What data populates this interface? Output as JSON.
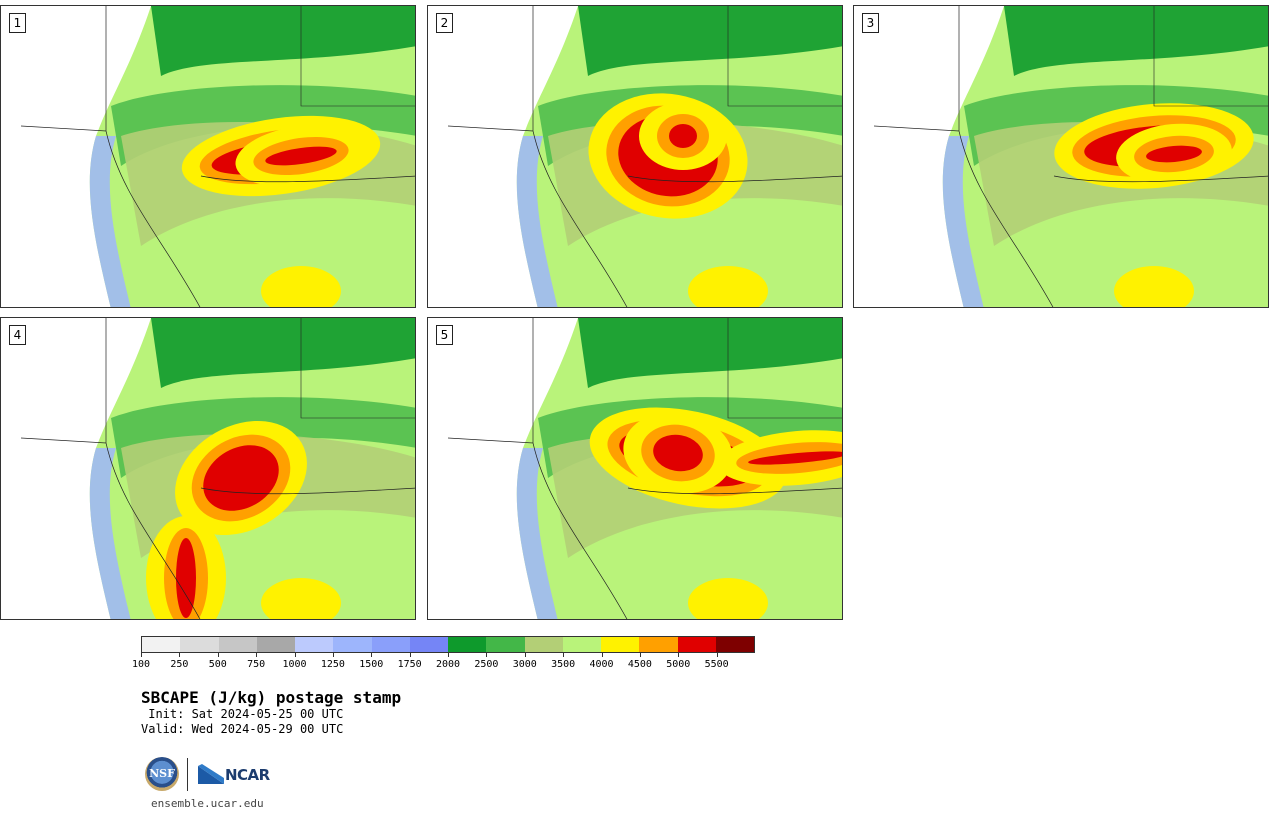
{
  "panels": [
    {
      "number": "1",
      "variant": 1
    },
    {
      "number": "2",
      "variant": 2
    },
    {
      "number": "3",
      "variant": 3
    },
    {
      "number": "4",
      "variant": 4
    },
    {
      "number": "5",
      "variant": 5
    }
  ],
  "colorbar": {
    "colors": [
      "#f2f2f2",
      "#dcdcdc",
      "#c6c6c6",
      "#a8a8a8",
      "#bccafd",
      "#9db5fc",
      "#8a9ffa",
      "#7585f6",
      "#0e9a2c",
      "#43b748",
      "#b3cf76",
      "#b9f37a",
      "#fff200",
      "#ffa000",
      "#e00000",
      "#7e0000"
    ],
    "tick_labels": [
      "100",
      "250",
      "500",
      "750",
      "1000",
      "1250",
      "1500",
      "1750",
      "2000",
      "2500",
      "3000",
      "3500",
      "4000",
      "4500",
      "5000",
      "5500"
    ]
  },
  "title": "SBCAPE (J/kg) postage stamp",
  "init": " Init: Sat 2024-05-25 00 UTC",
  "valid": "Valid: Wed 2024-05-29 00 UTC",
  "logos": {
    "nsf": "NSF",
    "ncar": "NCAR",
    "site": "ensemble.ucar.edu"
  }
}
